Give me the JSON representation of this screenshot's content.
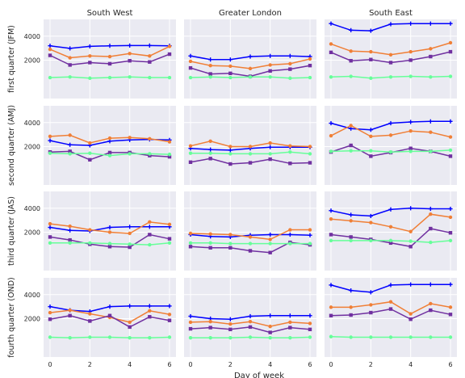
{
  "chart_data": {
    "type": "line",
    "xlabel": "Day of week",
    "x": [
      0,
      1,
      2,
      3,
      4,
      5,
      6
    ],
    "x_ticks": [
      0,
      2,
      4,
      6
    ],
    "y_ticks": [
      2000,
      4000
    ],
    "ylim": [
      -1200,
      5400
    ],
    "grid": true,
    "facet_background": "#eaeaf2",
    "series_colors": [
      "#0000ff",
      "#f07f36",
      "#7030a0",
      "#66ff99"
    ],
    "series_markers": [
      "+",
      "o",
      "s",
      "o"
    ],
    "columns": [
      "South West",
      "Greater London",
      "South East"
    ],
    "rows": [
      "first quarter (JFM)",
      "second quarter (AMJ)",
      "third quarter (JAS)",
      "fourth quarter (OND)"
    ],
    "panels": [
      [
        {
          "series": [
            {
              "values": [
                3200,
                2980,
                3150,
                3200,
                3220,
                3220,
                3200
              ]
            },
            {
              "values": [
                2900,
                2200,
                2350,
                2300,
                2550,
                2350,
                3150
              ]
            },
            {
              "values": [
                2400,
                1600,
                1800,
                1700,
                1950,
                1850,
                2500
              ]
            },
            {
              "values": [
                550,
                600,
                500,
                550,
                600,
                550,
                550
              ]
            }
          ]
        },
        {
          "series": [
            {
              "values": [
                2350,
                2050,
                2050,
                2300,
                2350,
                2350,
                2300
              ]
            },
            {
              "values": [
                1900,
                1550,
                1500,
                1300,
                1600,
                1700,
                2100
              ]
            },
            {
              "values": [
                1350,
                850,
                900,
                650,
                1100,
                1250,
                1550
              ]
            },
            {
              "values": [
                550,
                600,
                550,
                600,
                600,
                500,
                550
              ]
            }
          ]
        },
        {
          "series": [
            {
              "values": [
                5050,
                4500,
                4450,
                5000,
                5050,
                5050,
                5050
              ]
            },
            {
              "values": [
                3350,
                2750,
                2700,
                2450,
                2700,
                2950,
                3450
              ]
            },
            {
              "values": [
                2650,
                1950,
                2050,
                1800,
                2000,
                2300,
                2700
              ]
            },
            {
              "values": [
                600,
                650,
                500,
                600,
                650,
                600,
                650
              ]
            }
          ]
        }
      ],
      [
        {
          "series": [
            {
              "values": [
                2500,
                2150,
                2100,
                2450,
                2550,
                2600,
                2550
              ]
            },
            {
              "values": [
                2850,
                2950,
                2300,
                2700,
                2750,
                2650,
                2400
              ]
            },
            {
              "values": [
                1550,
                1600,
                900,
                1500,
                1500,
                1250,
                1150
              ]
            },
            {
              "values": [
                1450,
                1400,
                1450,
                1250,
                1400,
                1400,
                1350
              ]
            }
          ]
        },
        {
          "series": [
            {
              "values": [
                1850,
                1750,
                1700,
                1850,
                1950,
                1950,
                1950
              ]
            },
            {
              "values": [
                2050,
                2450,
                2000,
                2000,
                2300,
                2050,
                2000
              ]
            },
            {
              "values": [
                700,
                1000,
                550,
                650,
                950,
                600,
                650
              ]
            },
            {
              "values": [
                1450,
                1450,
                1400,
                1400,
                1400,
                1550,
                1400
              ]
            }
          ]
        },
        {
          "series": [
            {
              "values": [
                3950,
                3500,
                3400,
                3950,
                4050,
                4100,
                4100
              ]
            },
            {
              "values": [
                2900,
                3750,
                2850,
                2950,
                3300,
                3200,
                2800
              ]
            },
            {
              "values": [
                1550,
                2100,
                1200,
                1500,
                1850,
                1600,
                1200
              ]
            },
            {
              "values": [
                1600,
                1650,
                1650,
                1550,
                1600,
                1600,
                1700
              ]
            }
          ]
        }
      ],
      [
        {
          "series": [
            {
              "values": [
                2400,
                2150,
                2100,
                2400,
                2450,
                2450,
                2450
              ]
            },
            {
              "values": [
                2700,
                2500,
                2200,
                2000,
                1900,
                2850,
                2650
              ]
            },
            {
              "values": [
                1600,
                1350,
                1000,
                800,
                750,
                1800,
                1450
              ]
            },
            {
              "values": [
                1100,
                1100,
                1100,
                1050,
                1000,
                950,
                1100
              ]
            }
          ]
        },
        {
          "series": [
            {
              "values": [
                1800,
                1650,
                1600,
                1750,
                1800,
                1800,
                1750
              ]
            },
            {
              "values": [
                1900,
                1850,
                1800,
                1600,
                1400,
                2200,
                2200
              ]
            },
            {
              "values": [
                800,
                700,
                700,
                450,
                300,
                1150,
                950
              ]
            },
            {
              "values": [
                1100,
                1100,
                1050,
                1050,
                1050,
                1050,
                1050
              ]
            }
          ]
        },
        {
          "series": [
            {
              "values": [
                3800,
                3450,
                3350,
                3900,
                4000,
                3950,
                3950
              ]
            },
            {
              "values": [
                3100,
                2950,
                2800,
                2450,
                2050,
                3500,
                3250
              ]
            },
            {
              "values": [
                1800,
                1600,
                1400,
                1100,
                800,
                2300,
                1950
              ]
            },
            {
              "values": [
                1300,
                1300,
                1300,
                1300,
                1250,
                1150,
                1300
              ]
            }
          ]
        }
      ],
      [
        {
          "series": [
            {
              "values": [
                3000,
                2700,
                2600,
                3000,
                3050,
                3050,
                3050
              ]
            },
            {
              "values": [
                2500,
                2700,
                2400,
                2100,
                1700,
                2650,
                2350
              ]
            },
            {
              "values": [
                1950,
                2250,
                1800,
                2250,
                1300,
                2150,
                1850
              ]
            },
            {
              "values": [
                450,
                400,
                450,
                450,
                400,
                400,
                450
              ]
            }
          ]
        },
        {
          "series": [
            {
              "values": [
                2200,
                2000,
                1950,
                2200,
                2250,
                2250,
                2250
              ]
            },
            {
              "values": [
                1700,
                1750,
                1550,
                1750,
                1350,
                1700,
                1600
              ]
            },
            {
              "values": [
                1150,
                1250,
                1100,
                1300,
                850,
                1250,
                1100
              ]
            },
            {
              "values": [
                400,
                400,
                400,
                450,
                400,
                400,
                450
              ]
            }
          ]
        },
        {
          "series": [
            {
              "values": [
                4800,
                4350,
                4200,
                4800,
                4850,
                4850,
                4850
              ]
            },
            {
              "values": [
                2950,
                2950,
                3150,
                3400,
                2400,
                3250,
                2950
              ]
            },
            {
              "values": [
                2250,
                2300,
                2500,
                2800,
                1950,
                2700,
                2350
              ]
            },
            {
              "values": [
                500,
                450,
                450,
                450,
                450,
                450,
                450
              ]
            }
          ]
        }
      ]
    ]
  }
}
